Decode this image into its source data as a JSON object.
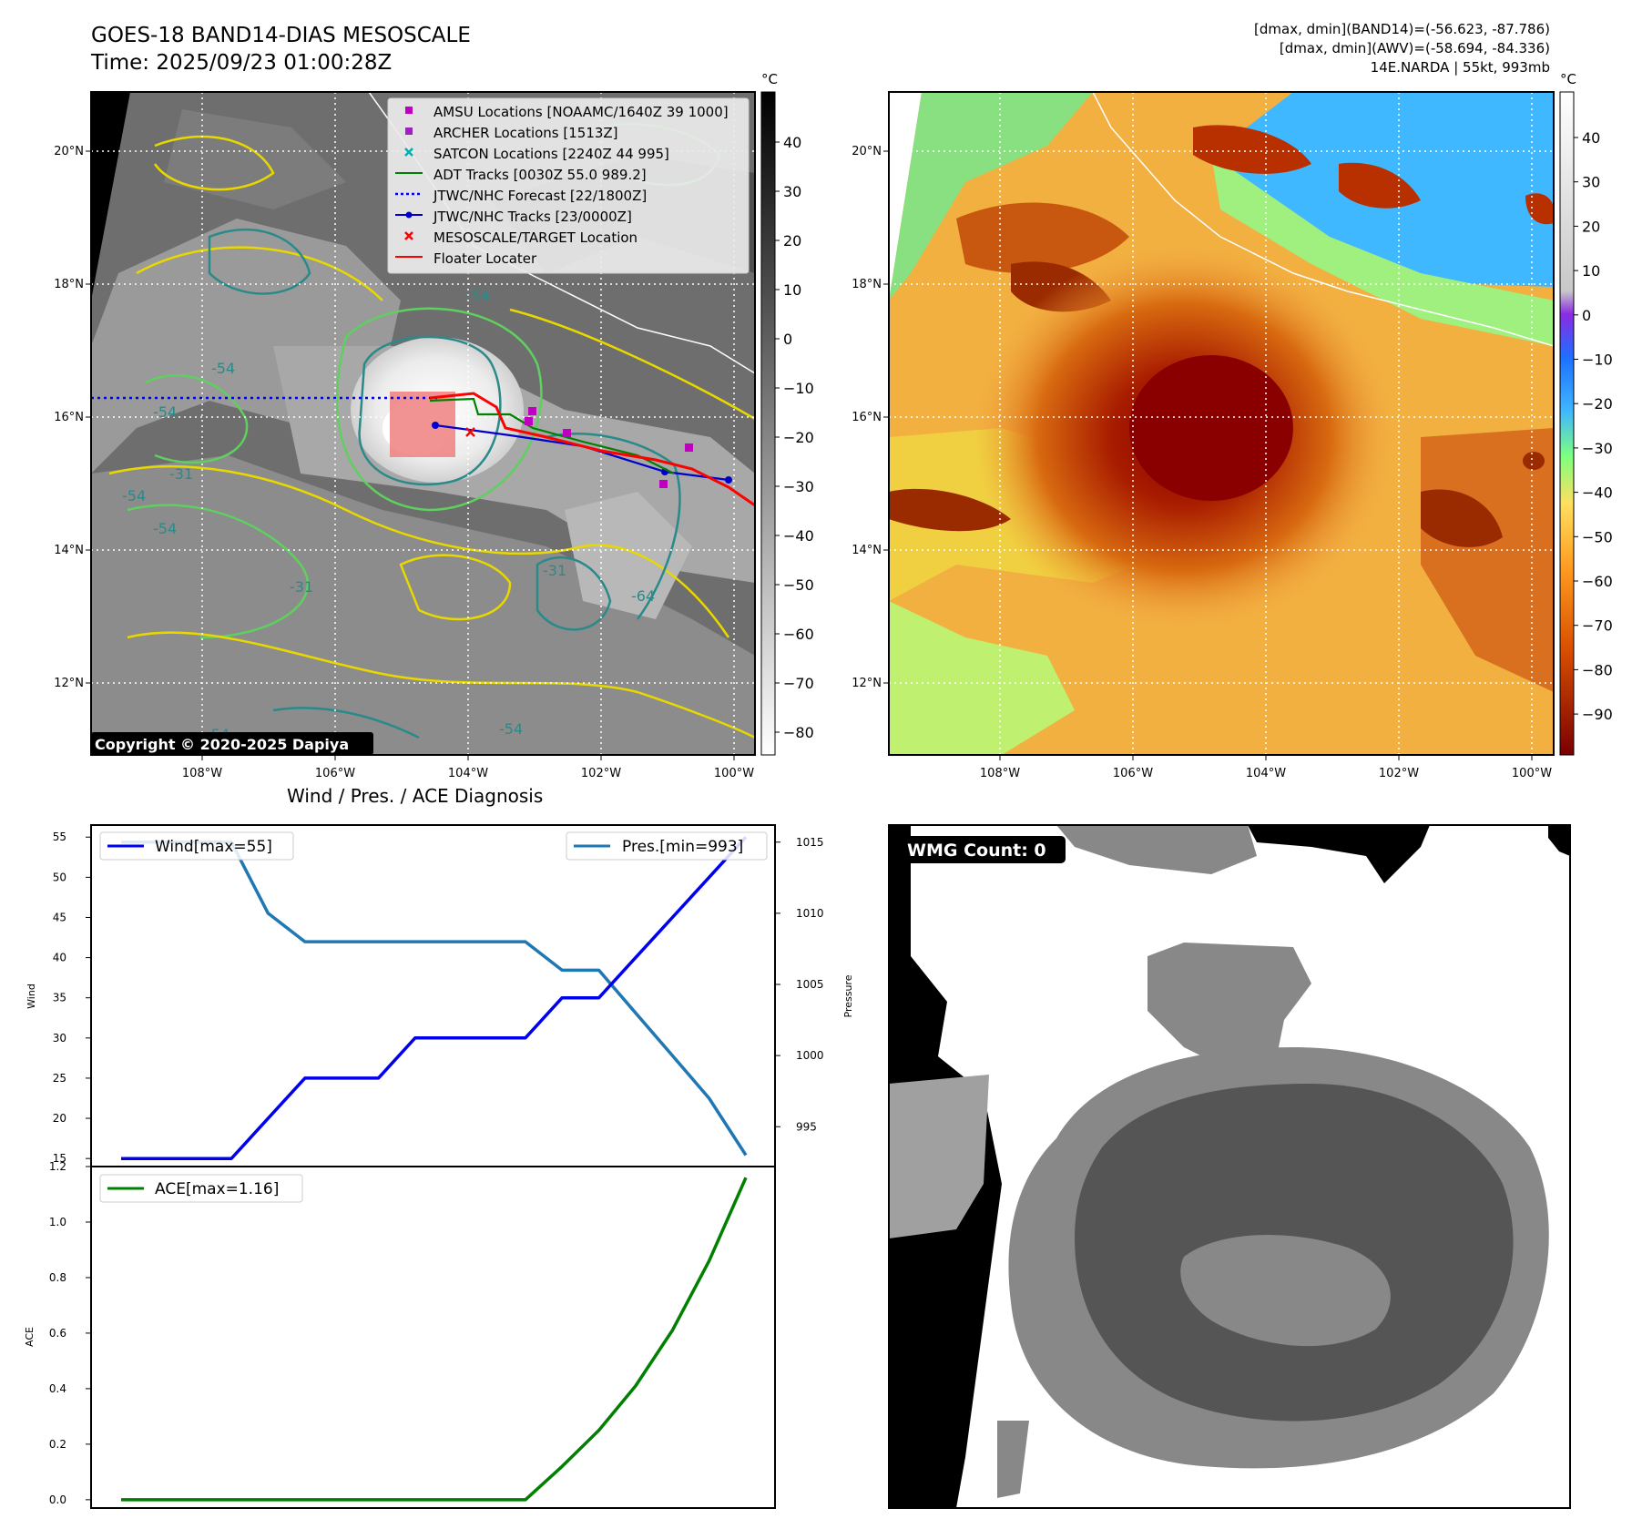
{
  "header": {
    "title_line1": "GOES-18 BAND14-DIAS MESOSCALE",
    "title_line2": "Time: 2025/09/23 01:00:28Z",
    "info_line1": "[dmax, dmin](BAND14)=(-56.623, -87.786)",
    "info_line2": "[dmax, dmin](AWV)=(-58.694, -84.336)",
    "info_line3": "14E.NARDA | 55kt, 993mb"
  },
  "map_axes": {
    "lon_ticks": [
      "108°W",
      "106°W",
      "104°W",
      "102°W",
      "100°W"
    ],
    "lat_ticks": [
      "20°N",
      "18°N",
      "16°N",
      "14°N",
      "12°N"
    ],
    "lon_values": [
      -108,
      -106,
      -104,
      -102,
      -100
    ],
    "lat_values": [
      20,
      18,
      16,
      14,
      12
    ]
  },
  "ir_panel": {
    "colorbar_unit": "°C",
    "colorbar_ticks": [
      "40",
      "30",
      "20",
      "10",
      "0",
      "−10",
      "−20",
      "−30",
      "−40",
      "−50",
      "−60",
      "−70",
      "−80"
    ],
    "copyright": "Copyright © 2020-2025 Dapiya",
    "contour_labels": [
      "-54",
      "-54",
      "-54",
      "-31",
      "-54",
      "-31",
      "-64",
      "-31",
      "-54",
      "-54",
      "-54"
    ],
    "legend": [
      {
        "label": "AMSU Locations [NOAAMC/1640Z 39 1000]",
        "marker": "square",
        "color": "#c000c0"
      },
      {
        "label": "ARCHER Locations [1513Z]",
        "marker": "square",
        "color": "#a020c0"
      },
      {
        "label": "SATCON Locations [2240Z 44 995]",
        "marker": "x",
        "color": "#00b0b0"
      },
      {
        "label": "ADT Tracks [0030Z 55.0 989.2]",
        "marker": "line",
        "color": "#008000"
      },
      {
        "label": "JTWC/NHC Forecast [22/1800Z]",
        "marker": "dotted",
        "color": "#0000ff"
      },
      {
        "label": "JTWC/NHC Tracks [23/0000Z]",
        "marker": "line-dot",
        "color": "#0000cc"
      },
      {
        "label": "MESOSCALE/TARGET Location",
        "marker": "x",
        "color": "#ff0000"
      },
      {
        "label": "Floater Locater",
        "marker": "line",
        "color": "#ff0000"
      }
    ]
  },
  "awv_panel": {
    "colorbar_unit": "°C",
    "colorbar_ticks": [
      "40",
      "30",
      "20",
      "10",
      "0",
      "−10",
      "−20",
      "−30",
      "−40",
      "−50",
      "−60",
      "−70",
      "−80",
      "−90"
    ]
  },
  "wmg_panel": {
    "badge": "WMG Count: 0"
  },
  "diag_panel": {
    "title": "Wind / Pres. / ACE Diagnosis"
  },
  "colors": {
    "wind": "#0000ee",
    "pressure": "#1f77b4",
    "ace": "#008000",
    "map_bg": "#000000"
  },
  "chart_data": [
    {
      "type": "line",
      "title": "Wind / Pres. / ACE Diagnosis",
      "ylabel": "Wind",
      "ylabel_right": "Pressure",
      "ylim": [
        14,
        56.5
      ],
      "ylim_right": [
        992.2,
        1016.2
      ],
      "yticks": [
        15,
        20,
        25,
        30,
        35,
        40,
        45,
        50,
        55
      ],
      "yticks_right": [
        995,
        1000,
        1005,
        1010,
        1015
      ],
      "x": [
        0,
        1,
        2,
        3,
        4,
        5,
        6,
        7,
        8,
        9,
        10,
        11,
        12,
        13,
        14,
        15,
        16,
        17
      ],
      "series": [
        {
          "name": "Wind[max=55]",
          "axis": "left",
          "values": [
            15,
            15,
            15,
            15,
            20,
            25,
            25,
            25,
            30,
            30,
            30,
            30,
            35,
            35,
            40,
            45,
            50,
            55
          ]
        },
        {
          "name": "Pres.[min=993]",
          "axis": "right",
          "values": [
            1015,
            1015,
            1015,
            1015,
            1010,
            1008,
            1008,
            1008,
            1008,
            1008,
            1008,
            1008,
            1006,
            1006,
            1003,
            1000,
            997,
            993
          ]
        }
      ]
    },
    {
      "type": "line",
      "ylabel": "ACE",
      "ylim": [
        -0.03,
        1.2
      ],
      "yticks": [
        0.0,
        0.2,
        0.4,
        0.6,
        0.8,
        1.0,
        1.2
      ],
      "ytick_labels": [
        "0.0",
        "0.2",
        "0.4",
        "0.6",
        "0.8",
        "1.0",
        "1.2"
      ],
      "x": [
        0,
        1,
        2,
        3,
        4,
        5,
        6,
        7,
        8,
        9,
        10,
        11,
        12,
        13,
        14,
        15,
        16,
        17
      ],
      "series": [
        {
          "name": "ACE[max=1.16]",
          "values": [
            0,
            0,
            0,
            0,
            0,
            0,
            0,
            0,
            0,
            0,
            0,
            0,
            0.12,
            0.25,
            0.41,
            0.61,
            0.86,
            1.16
          ]
        }
      ]
    }
  ]
}
